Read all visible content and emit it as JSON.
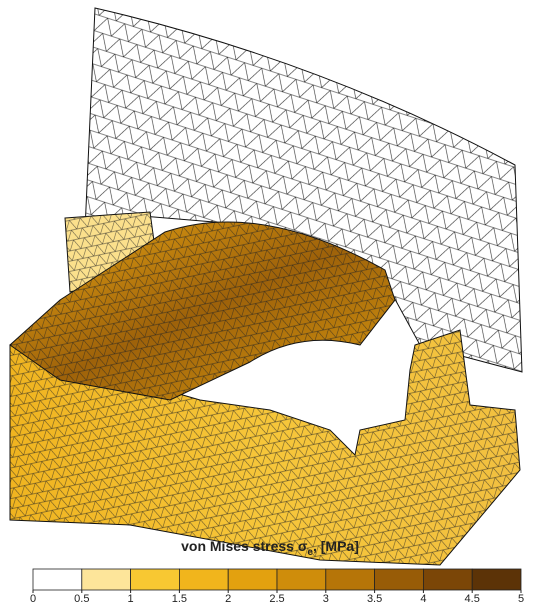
{
  "figure": {
    "title": {
      "main": "von Mises stress σ",
      "subscript": "e",
      "suffix": ", [MPa]"
    },
    "colorbar": {
      "range": [
        0,
        5
      ],
      "ticks": [
        0,
        0.5,
        1,
        1.5,
        2,
        2.5,
        3,
        3.5,
        4,
        4.5,
        5
      ],
      "colors": [
        "#ffffff",
        "#fde59a",
        "#f8c832",
        "#f1b51c",
        "#e3a10f",
        "#cf8d0b",
        "#b67508",
        "#985c07",
        "#7b4607",
        "#5c3307"
      ]
    }
  }
}
